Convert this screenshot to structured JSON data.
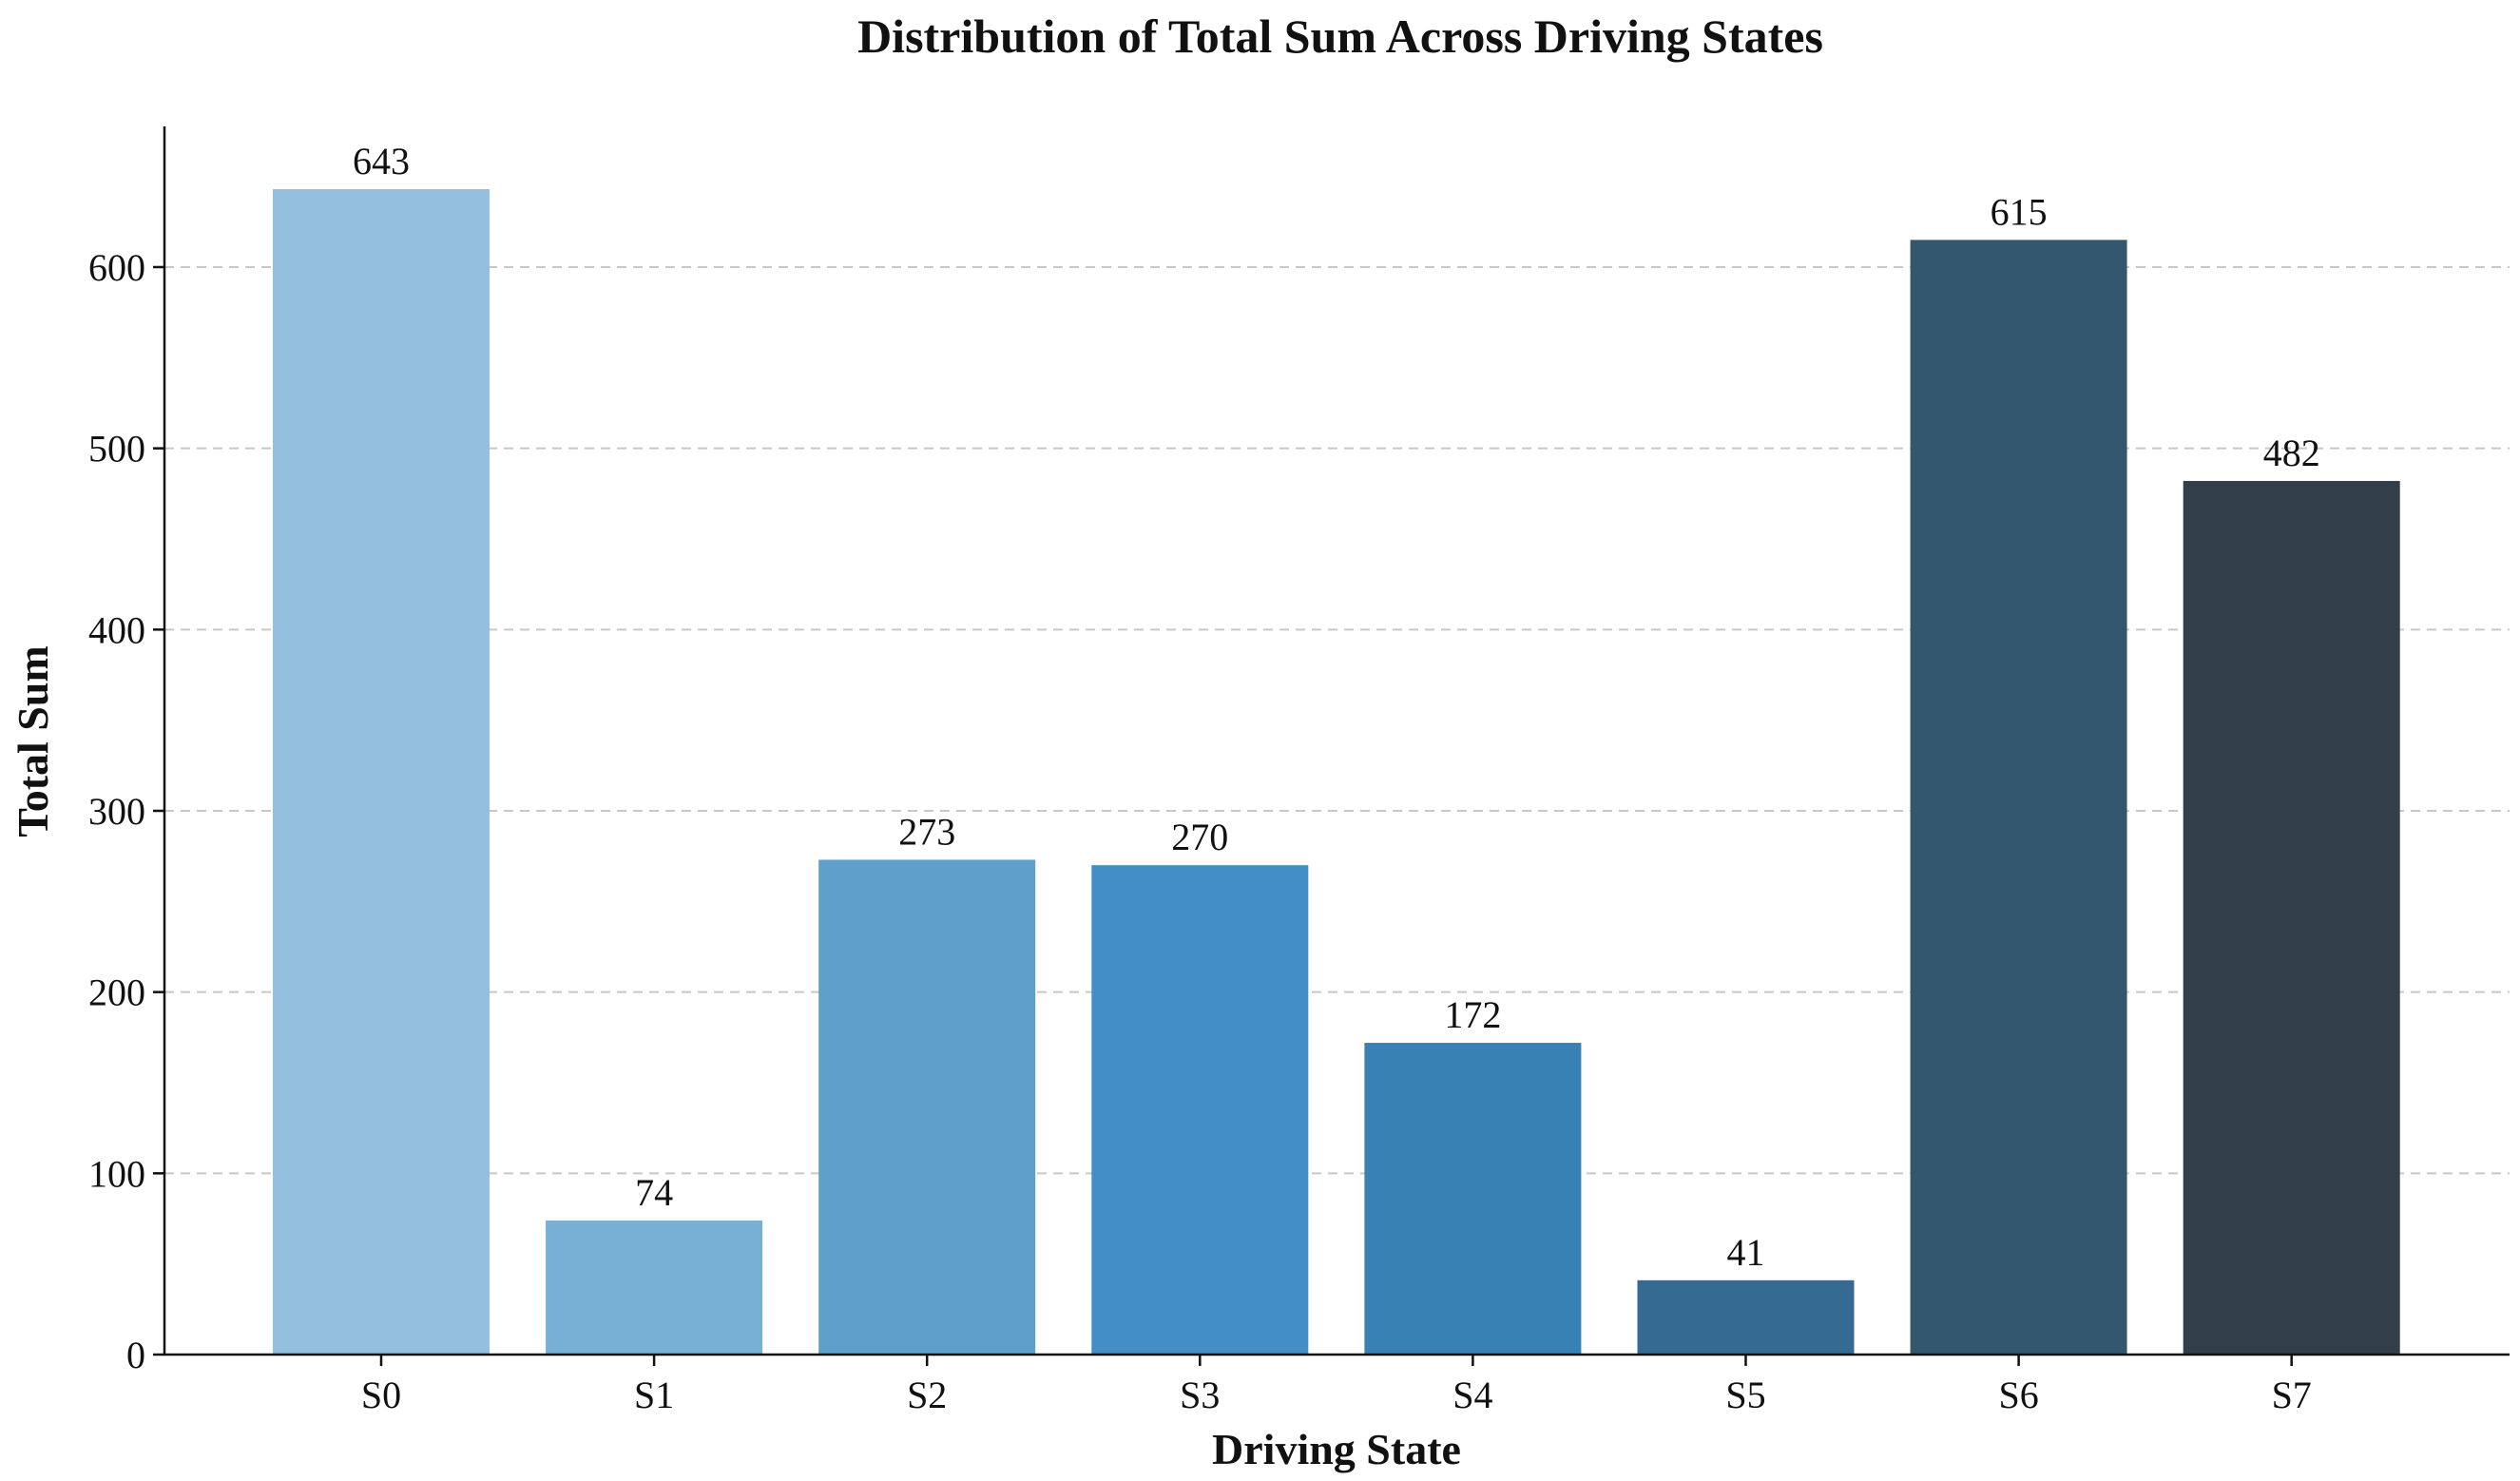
{
  "chart_data": {
    "type": "bar",
    "title": "Distribution of Total Sum Across Driving States",
    "xlabel": "Driving State",
    "ylabel": "Total Sum",
    "categories": [
      "S0",
      "S1",
      "S2",
      "S3",
      "S4",
      "S5",
      "S6",
      "S7"
    ],
    "values": [
      643,
      74,
      273,
      270,
      172,
      41,
      615,
      482
    ],
    "value_labels": [
      "643",
      "74",
      "273",
      "270",
      "172",
      "41",
      "615",
      "482"
    ],
    "colors": [
      "#94bfde",
      "#78afd4",
      "#5f9fcc",
      "#438ec6",
      "#3881b5",
      "#356a93",
      "#33586e",
      "#323f4b"
    ],
    "ylim": [
      0,
      680
    ],
    "yticks": [
      0,
      100,
      200,
      300,
      400,
      500,
      600
    ],
    "ytick_labels": [
      "0",
      "100",
      "200",
      "300",
      "400",
      "500",
      "600"
    ],
    "grid": "y-dashed",
    "legend": "none"
  }
}
